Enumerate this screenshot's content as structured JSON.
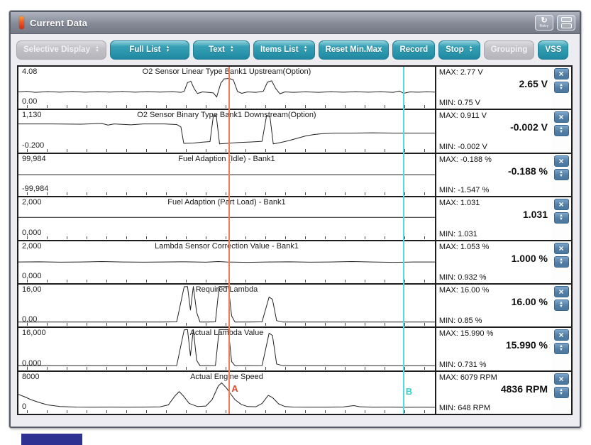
{
  "window": {
    "title": "Current Data"
  },
  "titlebar": {
    "retry_button": {
      "label": "Retry",
      "glyph": "↻"
    },
    "tile_button": {
      "icon": "stacked-windows"
    }
  },
  "toolbar": {
    "buttons": [
      {
        "label": "Selective Display",
        "dropdown": true,
        "enabled": false
      },
      {
        "label": "Full List",
        "dropdown": true,
        "enabled": true
      },
      {
        "label": "Text",
        "dropdown": true,
        "enabled": true
      },
      {
        "label": "Items List",
        "dropdown": true,
        "enabled": true
      },
      {
        "label": "Reset Min.Max",
        "dropdown": false,
        "enabled": true
      },
      {
        "label": "Record",
        "dropdown": false,
        "enabled": true
      },
      {
        "label": "Stop",
        "dropdown": true,
        "enabled": true
      },
      {
        "label": "Grouping",
        "dropdown": false,
        "enabled": false
      },
      {
        "label": "VSS",
        "dropdown": false,
        "enabled": true
      }
    ]
  },
  "colors": {
    "accent_teal": "#2792a9",
    "button_blue": "#527fa7",
    "cursor_a": "#ef7e58",
    "cursor_a_label": "#e4472a",
    "cursor_b": "#52dcdc",
    "cursor_b_label": "#35cfcf"
  },
  "chart_data": {
    "type": "line",
    "x_axis": "time, % of visible strip-chart window",
    "grid": false,
    "legend_position": "per-channel title",
    "cursors": {
      "a": {
        "label": "A",
        "x_pct": 50.3,
        "color": "#ef7e58",
        "label_color": "#e4472a"
      },
      "b": {
        "label": "B",
        "x_pct": 92.0,
        "color": "#52dcdc",
        "label_color": "#35cfcf"
      }
    },
    "channels": [
      {
        "name": "O2 Sensor Linear Type Bank1 Upstream(Option)",
        "scale_max_label": "4.08",
        "scale_min_label": "0.00",
        "scale_min": 0,
        "scale_max": 4.08,
        "unit": "V",
        "max": "MAX:  2.77 V",
        "current": "2.65 V",
        "min": "MIN:  0.75 V",
        "points": [
          [
            0,
            1.55
          ],
          [
            2,
            1.62
          ],
          [
            4,
            1.5
          ],
          [
            7,
            1.58
          ],
          [
            10,
            1.52
          ],
          [
            13,
            1.6
          ],
          [
            16,
            1.52
          ],
          [
            19,
            1.58
          ],
          [
            22,
            1.53
          ],
          [
            25,
            1.6
          ],
          [
            28,
            1.52
          ],
          [
            31,
            1.58
          ],
          [
            34,
            1.53
          ],
          [
            37,
            1.58
          ],
          [
            39,
            1.5
          ],
          [
            39.8,
            1.62
          ],
          [
            40.6,
            2.55
          ],
          [
            41.4,
            2.7
          ],
          [
            42.2,
            1.9
          ],
          [
            43,
            1.38
          ],
          [
            44.2,
            1.55
          ],
          [
            45.5,
            1.5
          ],
          [
            46.8,
            1.45
          ],
          [
            47.6,
            1.0
          ],
          [
            48.6,
            2.5
          ],
          [
            49.4,
            2.95
          ],
          [
            50.6,
            3.0
          ],
          [
            51.6,
            2.85
          ],
          [
            52.6,
            1.6
          ],
          [
            53.6,
            1.4
          ],
          [
            55,
            1.55
          ],
          [
            57,
            1.5
          ],
          [
            58.8,
            1.62
          ],
          [
            59.8,
            2.6
          ],
          [
            60.8,
            2.75
          ],
          [
            61.8,
            1.9
          ],
          [
            62.8,
            1.35
          ],
          [
            64,
            1.55
          ],
          [
            66,
            1.5
          ],
          [
            69,
            1.56
          ],
          [
            72,
            1.5
          ],
          [
            75,
            1.57
          ],
          [
            78,
            1.52
          ],
          [
            81,
            1.57
          ],
          [
            84,
            1.52
          ],
          [
            87,
            1.57
          ],
          [
            90,
            1.5
          ],
          [
            91.5,
            1.65
          ],
          [
            92.5,
            1.4
          ],
          [
            94,
            1.55
          ],
          [
            96,
            1.52
          ],
          [
            98,
            1.56
          ],
          [
            100,
            1.53
          ]
        ]
      },
      {
        "name": "O2 Sensor Binary Type Bank1 Downstream(Option)",
        "scale_max_label": "1,130",
        "scale_min_label": "-0.200",
        "scale_min": -0.2,
        "scale_max": 1.13,
        "unit": "V",
        "max": "MAX: 0.911 V",
        "current": "-0.002 V",
        "min": "MIN: -0.002 V",
        "points": [
          [
            0,
            0.7
          ],
          [
            8,
            0.7
          ],
          [
            15,
            0.69
          ],
          [
            20,
            0.72
          ],
          [
            21.5,
            0.66
          ],
          [
            23,
            0.7
          ],
          [
            27,
            0.67
          ],
          [
            30,
            0.7
          ],
          [
            35,
            0.7
          ],
          [
            38,
            0.68
          ],
          [
            39,
            0.6
          ],
          [
            39.7,
            0.02
          ],
          [
            42,
            0.03
          ],
          [
            44,
            0.06
          ],
          [
            46,
            0.08
          ],
          [
            46.8,
            0.98
          ],
          [
            47.5,
            1.0
          ],
          [
            48.3,
            0.0
          ],
          [
            50,
            0.02
          ],
          [
            53,
            0.05
          ],
          [
            56,
            0.07
          ],
          [
            58.5,
            0.09
          ],
          [
            59.6,
            1.0
          ],
          [
            60.4,
            0.95
          ],
          [
            61.2,
            0.0
          ],
          [
            63,
            0.05
          ],
          [
            65,
            0.12
          ],
          [
            67,
            0.2
          ],
          [
            69,
            0.28
          ],
          [
            71,
            0.33
          ],
          [
            73,
            0.36
          ],
          [
            76,
            0.38
          ],
          [
            80,
            0.38
          ],
          [
            85,
            0.39
          ],
          [
            90,
            0.38
          ],
          [
            95,
            0.38
          ],
          [
            100,
            0.38
          ]
        ]
      },
      {
        "name": "Fuel Adaption (Idle) - Bank1",
        "scale_max_label": "99,984",
        "scale_min_label": "-99,984",
        "scale_min": -99.984,
        "scale_max": 99.984,
        "unit": "%",
        "max": "MAX: -0.188 %",
        "current": "-0.188 %",
        "min": "MIN: -1.547 %",
        "points": [
          [
            0,
            -0.2
          ],
          [
            15,
            -0.25
          ],
          [
            30,
            -0.2
          ],
          [
            45,
            -0.22
          ],
          [
            60,
            -0.2
          ],
          [
            75,
            -0.22
          ],
          [
            90,
            -0.2
          ],
          [
            100,
            -0.2
          ]
        ]
      },
      {
        "name": "Fuel Adaption (Part Load) - Bank1",
        "scale_max_label": "2,000",
        "scale_min_label": "0,000",
        "scale_min": 0,
        "scale_max": 2.0,
        "unit": "",
        "max": "MAX: 1.031",
        "current": "1.031",
        "min": "MIN: 1.031",
        "points": [
          [
            0,
            1.031
          ],
          [
            25,
            1.031
          ],
          [
            50,
            1.031
          ],
          [
            75,
            1.031
          ],
          [
            100,
            1.031
          ]
        ]
      },
      {
        "name": "Lambda Sensor Correction Value - Bank1",
        "scale_max_label": "2,000",
        "scale_min_label": "0,000",
        "scale_min": 0,
        "scale_max": 2.0,
        "unit": "%",
        "max": "MAX: 1.053 %",
        "current": "1.000 %",
        "min": "MIN: 0.932 %",
        "points": [
          [
            0,
            1.0
          ],
          [
            5,
            1.01
          ],
          [
            10,
            0.99
          ],
          [
            15,
            1.0
          ],
          [
            20,
            1.02
          ],
          [
            25,
            1.0
          ],
          [
            30,
            0.99
          ],
          [
            35,
            1.0
          ],
          [
            40,
            1.01
          ],
          [
            45,
            0.99
          ],
          [
            48,
            1.02
          ],
          [
            50,
            1.0
          ],
          [
            55,
            0.98
          ],
          [
            60,
            1.0
          ],
          [
            65,
            1.01
          ],
          [
            70,
            0.99
          ],
          [
            75,
            1.0
          ],
          [
            80,
            1.02
          ],
          [
            85,
            1.0
          ],
          [
            90,
            0.98
          ],
          [
            95,
            1.0
          ],
          [
            100,
            1.0
          ]
        ]
      },
      {
        "name": "Required Lambda",
        "scale_max_label": "16,00",
        "scale_min_label": "0,00",
        "scale_min": 0,
        "scale_max": 16.0,
        "unit": "%",
        "max": "MAX: 16.00 %",
        "current": "16.00 %",
        "min": "MIN: 0.85 %",
        "points": [
          [
            0,
            0.9
          ],
          [
            10,
            0.9
          ],
          [
            20,
            0.9
          ],
          [
            28,
            0.9
          ],
          [
            34,
            0.9
          ],
          [
            38,
            1.0
          ],
          [
            39.8,
            15.8
          ],
          [
            40.6,
            15.9
          ],
          [
            41.3,
            6
          ],
          [
            42,
            15.9
          ],
          [
            42.8,
            5
          ],
          [
            43.6,
            0.9
          ],
          [
            45.5,
            0.9
          ],
          [
            47.3,
            1.0
          ],
          [
            48.2,
            15.9
          ],
          [
            50.4,
            15.9
          ],
          [
            51.2,
            3.5
          ],
          [
            52,
            0.9
          ],
          [
            55,
            0.9
          ],
          [
            58.5,
            1.0
          ],
          [
            60.2,
            11.5
          ],
          [
            61,
            10.5
          ],
          [
            62,
            1.5
          ],
          [
            63.5,
            0.9
          ],
          [
            67,
            0.9
          ],
          [
            72,
            0.9
          ],
          [
            78,
            0.9
          ],
          [
            85,
            0.9
          ],
          [
            92,
            0.9
          ],
          [
            100,
            0.9
          ]
        ]
      },
      {
        "name": "Actual Lambda Value",
        "scale_max_label": "16,000",
        "scale_min_label": "0,000",
        "scale_min": 0,
        "scale_max": 16.0,
        "unit": "%",
        "max": "MAX: 15.990 %",
        "current": "15.990 %",
        "min": "MIN: 0.731 %",
        "points": [
          [
            0,
            0.75
          ],
          [
            12,
            0.75
          ],
          [
            24,
            0.75
          ],
          [
            34,
            0.75
          ],
          [
            38,
            0.8
          ],
          [
            39.8,
            15.9
          ],
          [
            40.6,
            15.99
          ],
          [
            41.3,
            5
          ],
          [
            42,
            15.99
          ],
          [
            42.8,
            3
          ],
          [
            43.6,
            0.75
          ],
          [
            45.5,
            0.75
          ],
          [
            47.3,
            0.8
          ],
          [
            48.2,
            15.99
          ],
          [
            50.4,
            15.99
          ],
          [
            51.2,
            2.5
          ],
          [
            52,
            0.75
          ],
          [
            55,
            0.75
          ],
          [
            58.5,
            0.8
          ],
          [
            60.2,
            14.5
          ],
          [
            61,
            13.5
          ],
          [
            62,
            1.5
          ],
          [
            63.5,
            0.75
          ],
          [
            67,
            0.75
          ],
          [
            72,
            0.75
          ],
          [
            78,
            0.75
          ],
          [
            85,
            0.75
          ],
          [
            92,
            0.75
          ],
          [
            100,
            0.75
          ]
        ]
      },
      {
        "name": "Actual Engine Speed",
        "scale_max_label": "8000",
        "scale_min_label": "0",
        "scale_min": 0,
        "scale_max": 8000,
        "unit": "RPM",
        "max": "MAX:  6079 RPM",
        "current": "4836 RPM",
        "min": "MIN:   648 RPM",
        "points": [
          [
            0,
            3600
          ],
          [
            1.5,
            3100
          ],
          [
            3,
            2500
          ],
          [
            5,
            1900
          ],
          [
            7,
            1400
          ],
          [
            10,
            1050
          ],
          [
            14,
            930
          ],
          [
            18,
            900
          ],
          [
            22,
            920
          ],
          [
            26,
            900
          ],
          [
            30,
            920
          ],
          [
            34,
            980
          ],
          [
            36,
            1400
          ],
          [
            37.6,
            3300
          ],
          [
            38.6,
            4200
          ],
          [
            39.6,
            3300
          ],
          [
            41,
            1700
          ],
          [
            43,
            1050
          ],
          [
            45,
            1150
          ],
          [
            46.5,
            2500
          ],
          [
            48,
            5400
          ],
          [
            48.8,
            6050
          ],
          [
            50,
            4900
          ],
          [
            50.8,
            3900
          ],
          [
            52,
            2500
          ],
          [
            53.5,
            1500
          ],
          [
            55,
            1050
          ],
          [
            57,
            1000
          ],
          [
            58.5,
            1700
          ],
          [
            60,
            3400
          ],
          [
            61,
            2950
          ],
          [
            62.5,
            1600
          ],
          [
            64,
            1050
          ],
          [
            66,
            930
          ],
          [
            70,
            910
          ],
          [
            74,
            900
          ],
          [
            78,
            960
          ],
          [
            80.5,
            1250
          ],
          [
            82,
            1000
          ],
          [
            85,
            900
          ],
          [
            89,
            920
          ],
          [
            93,
            880
          ],
          [
            97,
            900
          ],
          [
            100,
            880
          ]
        ]
      }
    ]
  }
}
